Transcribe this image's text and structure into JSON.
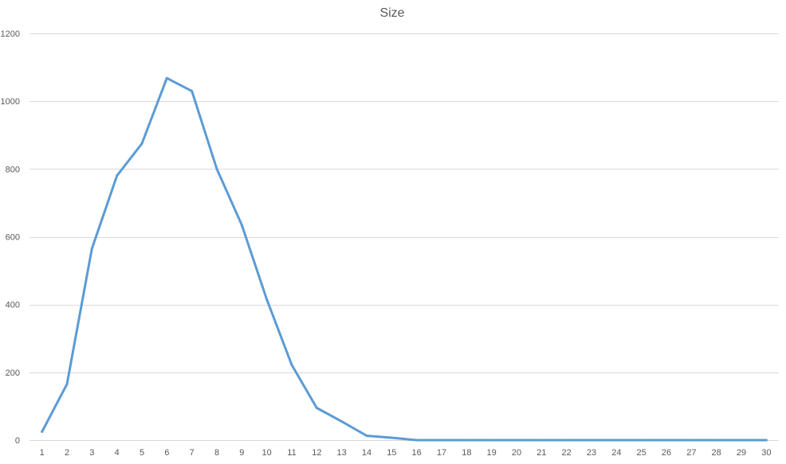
{
  "chart_data": {
    "type": "line",
    "title": "Size",
    "xlabel": "",
    "ylabel": "",
    "categories": [
      "1",
      "2",
      "3",
      "4",
      "5",
      "6",
      "7",
      "8",
      "9",
      "10",
      "11",
      "12",
      "13",
      "14",
      "15",
      "16",
      "17",
      "18",
      "19",
      "20",
      "21",
      "22",
      "23",
      "24",
      "25",
      "26",
      "27",
      "28",
      "29",
      "30"
    ],
    "ylim": [
      0,
      1200
    ],
    "yticks": [
      0,
      200,
      400,
      600,
      800,
      1000,
      1200
    ],
    "grid": true,
    "legend": "none",
    "series": [
      {
        "color": "#5b9bd5",
        "values": [
          25,
          165,
          565,
          780,
          875,
          1068,
          1030,
          800,
          635,
          415,
          222,
          95,
          55,
          13,
          7,
          0,
          0,
          0,
          0,
          0,
          0,
          0,
          0,
          0,
          0,
          0,
          0,
          0,
          0,
          0
        ]
      }
    ]
  }
}
